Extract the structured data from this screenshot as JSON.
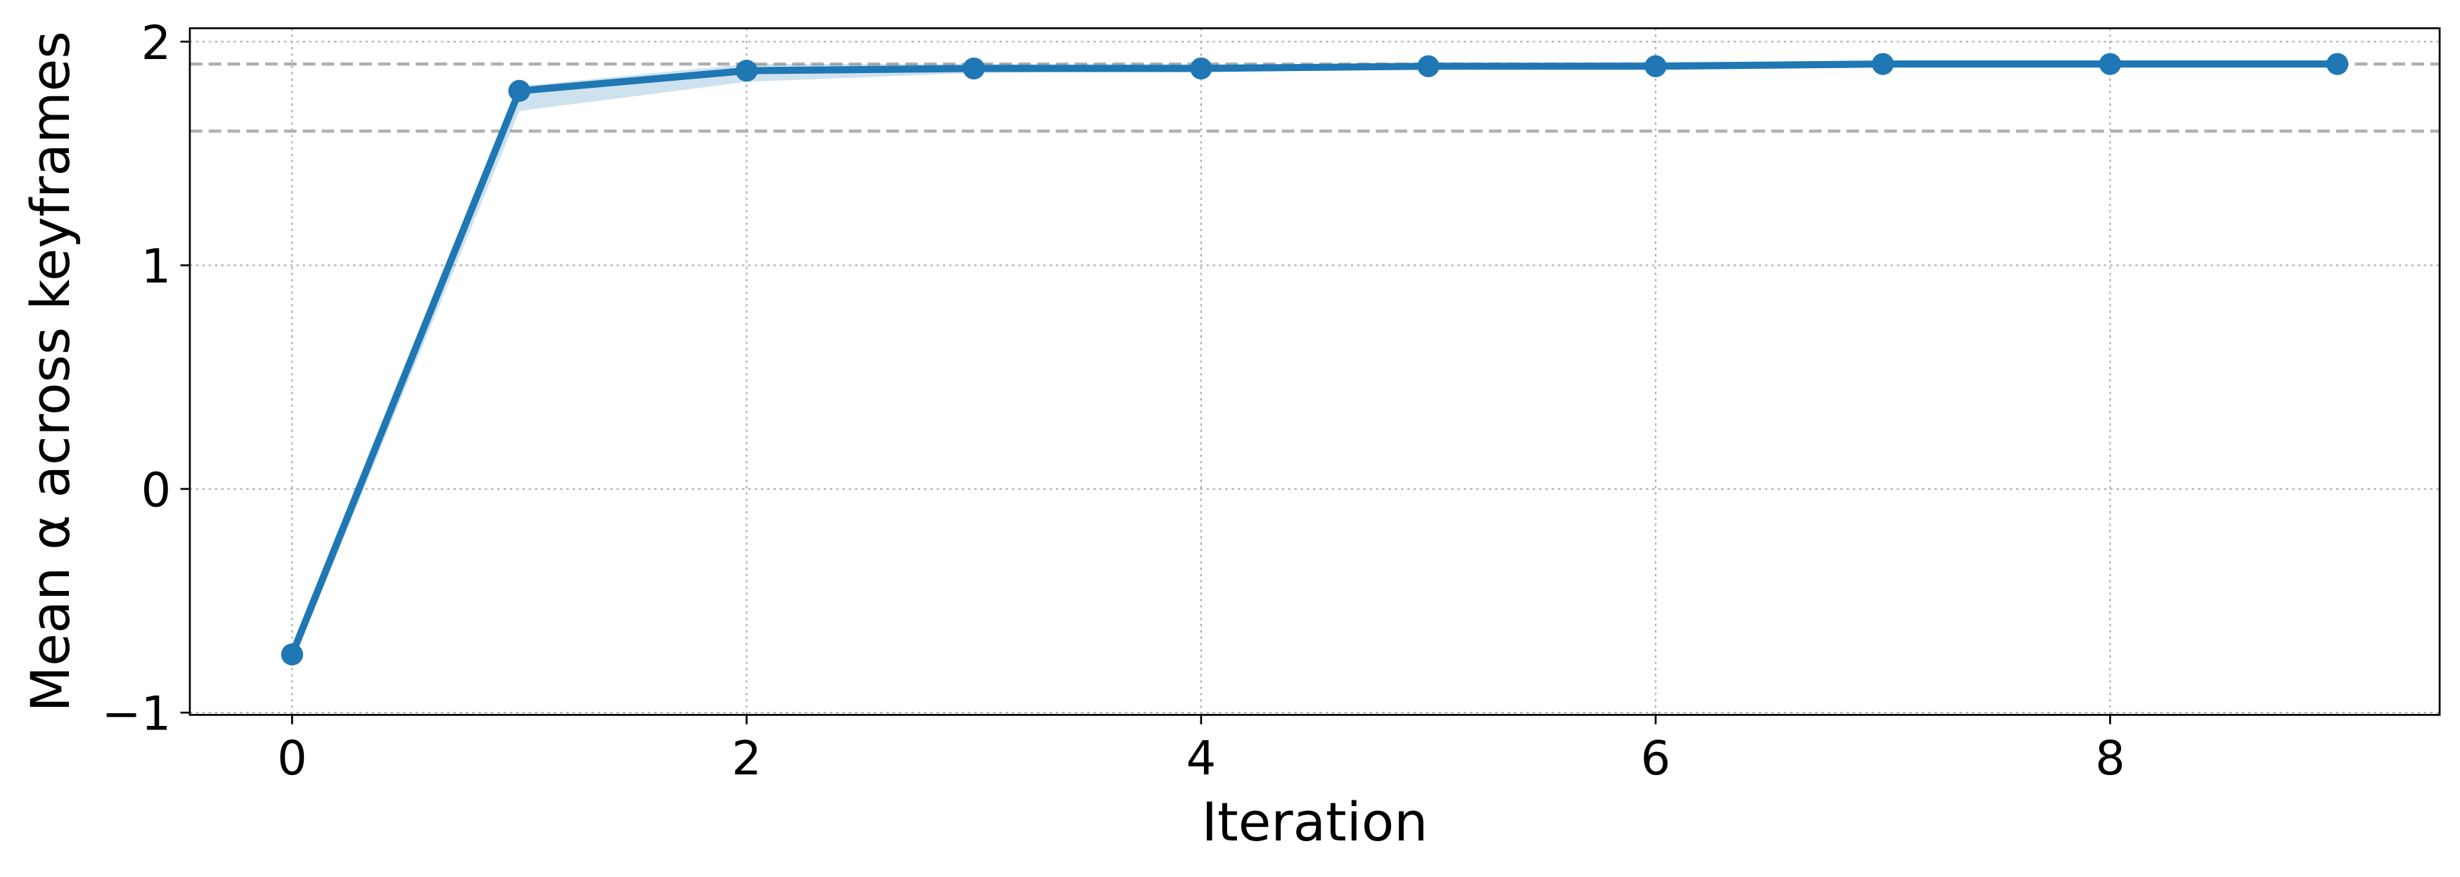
{
  "chart_data": {
    "type": "line",
    "x_label": "Iteration",
    "y_label": "Mean α across keyframes",
    "x": [
      0,
      1,
      2,
      3,
      4,
      5,
      6,
      7,
      8,
      9
    ],
    "series": [
      {
        "color": "#1f77b4",
        "values": [
          -0.74,
          1.78,
          1.87,
          1.88,
          1.88,
          1.89,
          1.89,
          1.9,
          1.9,
          1.9
        ],
        "band": {
          "lower": [
            -0.78,
            1.69,
            1.82,
            1.86,
            1.87,
            1.88,
            1.88,
            1.89,
            1.89,
            1.89
          ],
          "upper": [
            -0.7,
            1.8,
            1.9,
            1.9,
            1.9,
            1.9,
            1.91,
            1.91,
            1.91,
            1.91
          ]
        }
      }
    ],
    "hlines": {
      "values": [
        1.9,
        1.6
      ],
      "color": "#b0b0b0"
    },
    "xlim": [
      -0.45,
      9.45
    ],
    "ylim": [
      -1.01,
      2.06
    ],
    "xticks": [
      0,
      2,
      4,
      6,
      8
    ],
    "yticks": [
      {
        "value": -1,
        "label": "−1"
      },
      0,
      1,
      2
    ],
    "grid": true
  }
}
